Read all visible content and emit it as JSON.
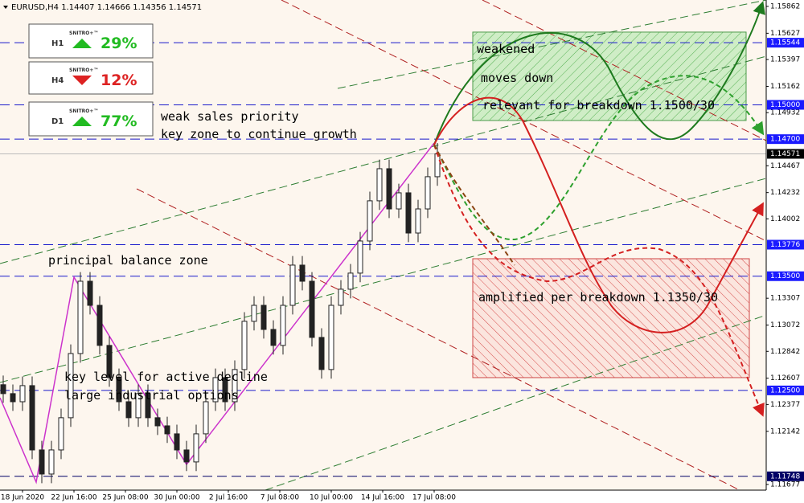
{
  "chart_data": {
    "type": "candlestick",
    "title": "EURUSD,H4  1.14407 1.14666 1.14356 1.14571",
    "x": [
      -6,
      -3,
      0,
      3,
      6,
      9,
      12,
      15,
      18,
      21,
      24,
      27,
      30,
      33,
      36,
      39,
      42,
      45,
      48,
      51,
      54,
      57,
      60,
      63,
      66,
      69,
      72,
      75,
      78,
      81,
      84,
      87,
      90,
      93,
      96,
      99,
      102,
      105,
      108,
      111,
      114,
      117,
      120,
      123,
      126,
      129
    ],
    "open": [
      1.1255,
      1.12472,
      1.12401,
      1.12542,
      1.11979,
      1.11768,
      1.11979,
      1.12261,
      1.12823,
      1.13456,
      1.13245,
      1.12894,
      1.12612,
      1.12401,
      1.12261,
      1.12472,
      1.12261,
      1.1219,
      1.1212,
      1.11979,
      1.11874,
      1.1212,
      1.12401,
      1.12612,
      1.12401,
      1.12683,
      1.13105,
      1.13245,
      1.13034,
      1.12894,
      1.13245,
      1.13597,
      1.13456,
      1.12964,
      1.12683,
      1.13245,
      1.13386,
      1.13527,
      1.13808,
      1.1416,
      1.14441,
      1.14089,
      1.1423,
      1.13878,
      1.14089,
      1.14371
    ],
    "high": [
      1.1263,
      1.12552,
      1.12622,
      1.12622,
      1.12059,
      1.12059,
      1.12341,
      1.12903,
      1.13536,
      1.13536,
      1.13325,
      1.12974,
      1.12692,
      1.12481,
      1.12552,
      1.12552,
      1.12341,
      1.1227,
      1.122,
      1.12059,
      1.122,
      1.12481,
      1.12692,
      1.12692,
      1.12763,
      1.13185,
      1.13325,
      1.13325,
      1.13114,
      1.13325,
      1.13677,
      1.13677,
      1.13536,
      1.13044,
      1.13325,
      1.13466,
      1.13607,
      1.13888,
      1.1424,
      1.14521,
      1.14521,
      1.1431,
      1.1431,
      1.14169,
      1.14451,
      1.14666
    ],
    "low": [
      1.12392,
      1.12321,
      1.12321,
      1.11899,
      1.11688,
      1.11688,
      1.11899,
      1.12181,
      1.12743,
      1.13165,
      1.12814,
      1.12532,
      1.12321,
      1.12181,
      1.12181,
      1.12181,
      1.1211,
      1.1204,
      1.11899,
      1.11794,
      1.11794,
      1.1204,
      1.12321,
      1.12321,
      1.12321,
      1.12603,
      1.13025,
      1.12954,
      1.12814,
      1.12814,
      1.13165,
      1.13376,
      1.12884,
      1.12603,
      1.12603,
      1.13165,
      1.13306,
      1.13447,
      1.13728,
      1.1408,
      1.14009,
      1.14009,
      1.13798,
      1.13798,
      1.14009,
      1.14291
    ],
    "close": [
      1.12472,
      1.12401,
      1.12542,
      1.11979,
      1.11768,
      1.11979,
      1.12261,
      1.12823,
      1.13456,
      1.13245,
      1.12894,
      1.12612,
      1.12401,
      1.12261,
      1.12472,
      1.12261,
      1.1219,
      1.1212,
      1.11979,
      1.11874,
      1.1212,
      1.12401,
      1.12612,
      1.12401,
      1.12683,
      1.13105,
      1.13245,
      1.13034,
      1.12894,
      1.13245,
      1.13597,
      1.13456,
      1.12964,
      1.12683,
      1.13245,
      1.13386,
      1.13527,
      1.13808,
      1.1416,
      1.14441,
      1.14089,
      1.1423,
      1.13878,
      1.14089,
      1.14371,
      1.14571
    ],
    "xlim": [
      -7,
      231.25
    ],
    "xticks": [
      {
        "value": 0,
        "label": "18 Jun 2020"
      },
      {
        "value": 16,
        "label": "22 Jun 16:00"
      },
      {
        "value": 32,
        "label": "25 Jun 08:00"
      },
      {
        "value": 48,
        "label": "30 Jun 00:00"
      },
      {
        "value": 64,
        "label": "2 Jul 16:00"
      },
      {
        "value": 80,
        "label": "7 Jul 08:00"
      },
      {
        "value": 96,
        "label": "10 Jul 00:00"
      },
      {
        "value": 112,
        "label": "14 Jul 16:00"
      },
      {
        "value": 128,
        "label": "17 Jul 08:00"
      }
    ],
    "ylim": [
      1.11627,
      1.15918
    ],
    "yticks": [
      1.15862,
      1.15627,
      1.15397,
      1.15162,
      1.14932,
      1.14467,
      1.14232,
      1.14002,
      1.13307,
      1.13072,
      1.12842,
      1.12607,
      1.12377,
      1.12142,
      1.11677
    ],
    "levels": [
      1.15544,
      {
        "value": 1.15,
        "label": "1.15000"
      },
      {
        "value": 1.147,
        "label": "1.14700"
      },
      1.13776,
      {
        "value": 1.135,
        "label": "1.13500"
      },
      {
        "value": 1.125,
        "label": "1.12500"
      },
      1.11748
    ],
    "last_price": 1.14571,
    "zones": [
      {
        "from": 140,
        "to": 225,
        "low": 1.14863,
        "high": 1.15637,
        "color": "#2e8b2e"
      },
      {
        "from": 140,
        "to": 226,
        "low": 1.12612,
        "high": 1.13653,
        "color": "#c62828"
      }
    ],
    "annotations": [
      "weak sales priority",
      "key zone to continue growth",
      "principal balance zone",
      "key level for active decline",
      "large industrial options",
      "weakened",
      "moves down",
      "relevant for breakdown 1.1500/30",
      "amplified per breakdown 1.1350/30"
    ]
  },
  "signals": [
    {
      "timeframe": "H1",
      "brand": "SNITRO+™",
      "change": "29%",
      "direction": "up"
    },
    {
      "timeframe": "H4",
      "brand": "SNITRO+™",
      "change": "12%",
      "direction": "down"
    },
    {
      "timeframe": "D1",
      "brand": "SNITRO+™",
      "change": "77%",
      "direction": "up"
    }
  ]
}
